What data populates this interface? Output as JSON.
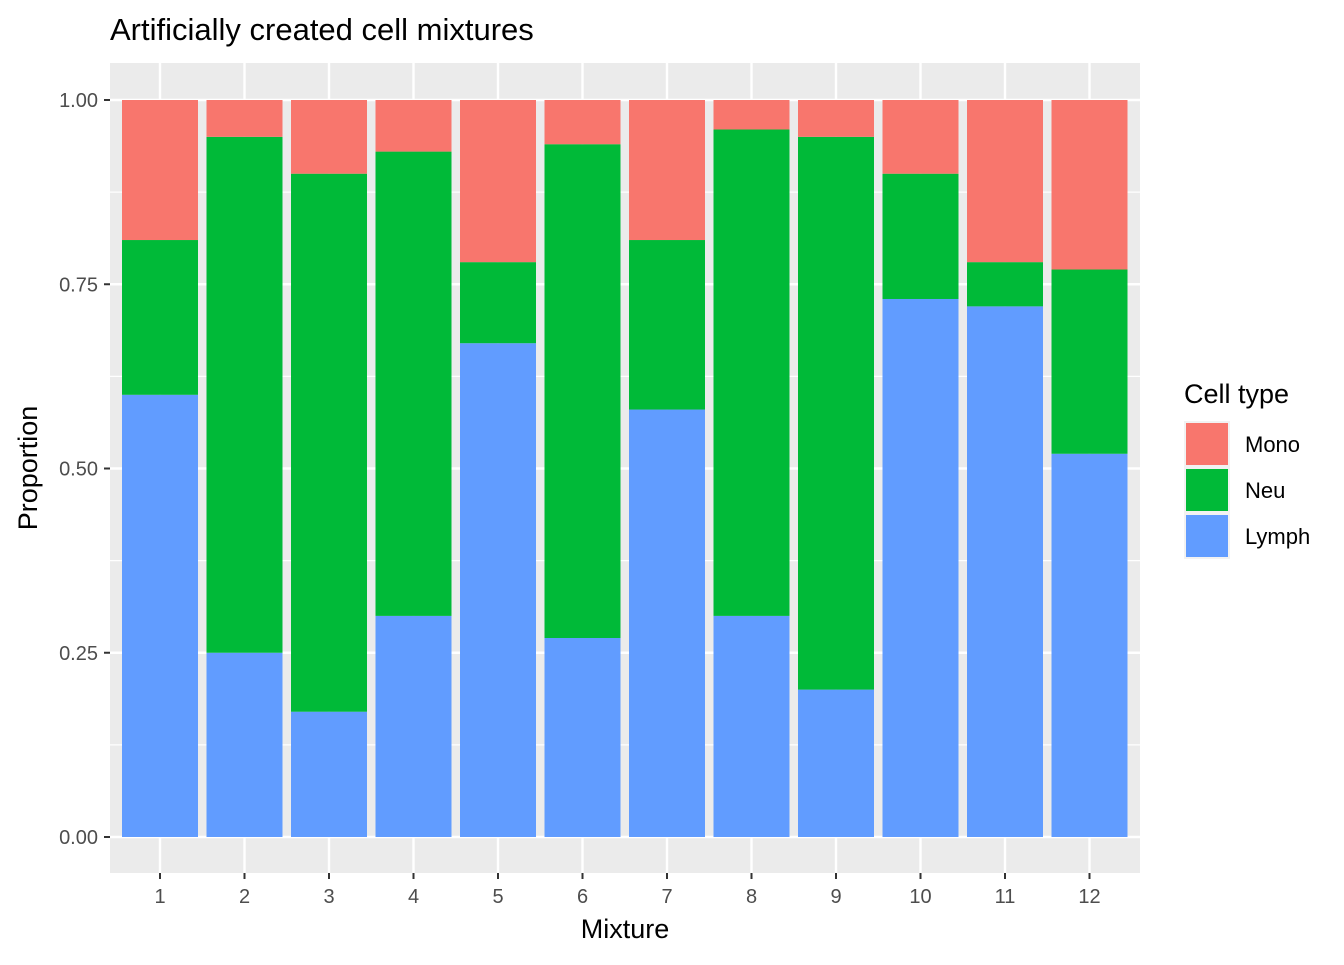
{
  "chart_data": {
    "type": "bar",
    "stacked": true,
    "title": "Artificially created cell mixtures",
    "xlabel": "Mixture",
    "ylabel": "Proportion",
    "categories": [
      "1",
      "2",
      "3",
      "4",
      "5",
      "6",
      "7",
      "8",
      "9",
      "10",
      "11",
      "12"
    ],
    "ylim": [
      0,
      1
    ],
    "yticks": [
      "0.00",
      "0.25",
      "0.50",
      "0.75",
      "1.00"
    ],
    "legend": {
      "title": "Cell type",
      "position": "right",
      "entries": [
        "Mono",
        "Neu",
        "Lymph"
      ]
    },
    "series": [
      {
        "name": "Lymph",
        "color": "#619CFF",
        "values": [
          0.6,
          0.25,
          0.17,
          0.3,
          0.67,
          0.27,
          0.58,
          0.3,
          0.2,
          0.73,
          0.72,
          0.52
        ]
      },
      {
        "name": "Neu",
        "color": "#00BA38",
        "values": [
          0.21,
          0.7,
          0.73,
          0.63,
          0.11,
          0.67,
          0.23,
          0.66,
          0.75,
          0.17,
          0.06,
          0.25
        ]
      },
      {
        "name": "Mono",
        "color": "#F8766D",
        "values": [
          0.19,
          0.05,
          0.1,
          0.07,
          0.22,
          0.06,
          0.19,
          0.04,
          0.05,
          0.1,
          0.22,
          0.23
        ]
      }
    ],
    "grid": true,
    "panel_background": "#EBEBEB",
    "grid_color": "#FFFFFF"
  }
}
